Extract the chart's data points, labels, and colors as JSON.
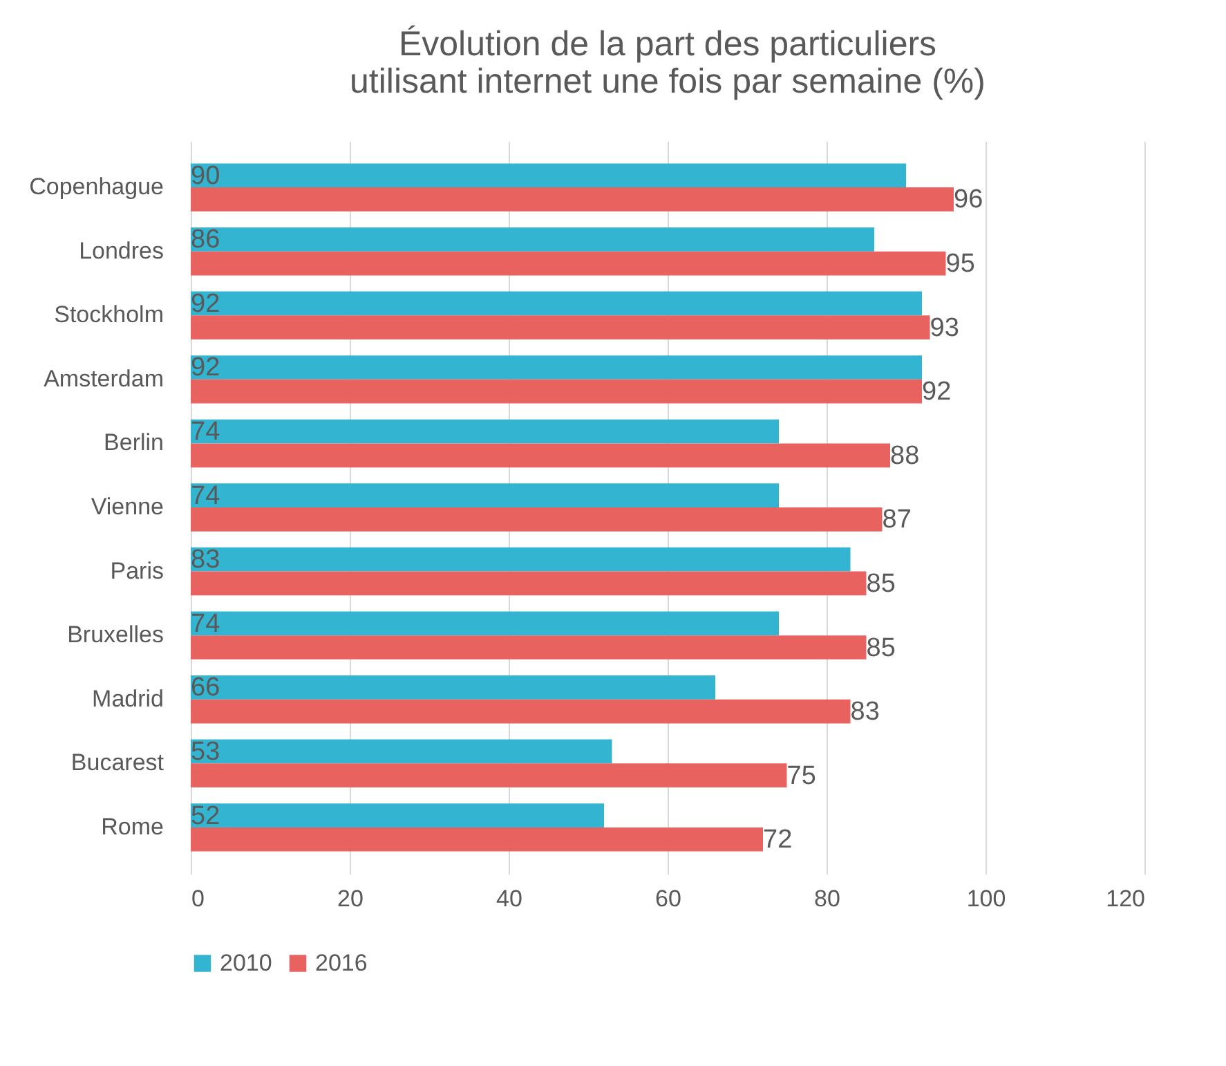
{
  "chart_data": {
    "type": "bar",
    "orientation": "horizontal",
    "title": "Évolution de la part des particuliers utilisant internet une fois par semaine (%)",
    "categories": [
      "Copenhague",
      "Londres",
      "Stockholm",
      "Amsterdam",
      "Berlin",
      "Vienne",
      "Paris",
      "Bruxelles",
      "Madrid",
      "Bucarest",
      "Rome"
    ],
    "series": [
      {
        "name": "2010",
        "color": "#33b5d1",
        "values": [
          90,
          86,
          92,
          92,
          74,
          74,
          83,
          74,
          66,
          53,
          52
        ]
      },
      {
        "name": "2016",
        "color": "#e8635f",
        "values": [
          96,
          95,
          93,
          92,
          88,
          87,
          85,
          85,
          83,
          75,
          72
        ]
      }
    ],
    "xlim": [
      0,
      120
    ],
    "xticks": [
      0,
      20,
      40,
      60,
      80,
      100,
      120
    ],
    "grid": "x",
    "legend": "bottom",
    "data_labels": true
  }
}
